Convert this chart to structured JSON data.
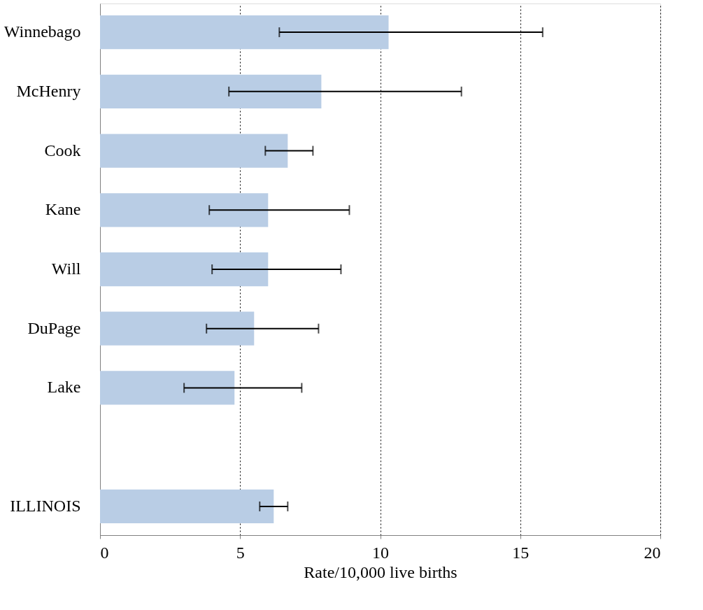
{
  "chart_data": {
    "type": "bar",
    "orientation": "horizontal",
    "xlabel": "Rate/10,000 live births",
    "categories": [
      "Winnebago",
      "McHenry",
      "Cook",
      "Kane",
      "Will",
      "DuPage",
      "Lake",
      null,
      "ILLINOIS"
    ],
    "values": [
      10.3,
      7.9,
      6.7,
      6.0,
      6.0,
      5.5,
      4.8,
      null,
      6.2
    ],
    "errors": [
      [
        6.4,
        15.8
      ],
      [
        4.6,
        12.9
      ],
      [
        5.9,
        7.6
      ],
      [
        3.9,
        8.9
      ],
      [
        4.0,
        8.6
      ],
      [
        3.8,
        7.8
      ],
      [
        3.0,
        7.2
      ],
      null,
      [
        5.7,
        6.7
      ]
    ],
    "color": "#b9cde5",
    "xlim": [
      0,
      20
    ],
    "xticks": [
      0,
      5,
      10,
      15,
      20
    ],
    "grid": "x",
    "line_style": "dotted"
  }
}
